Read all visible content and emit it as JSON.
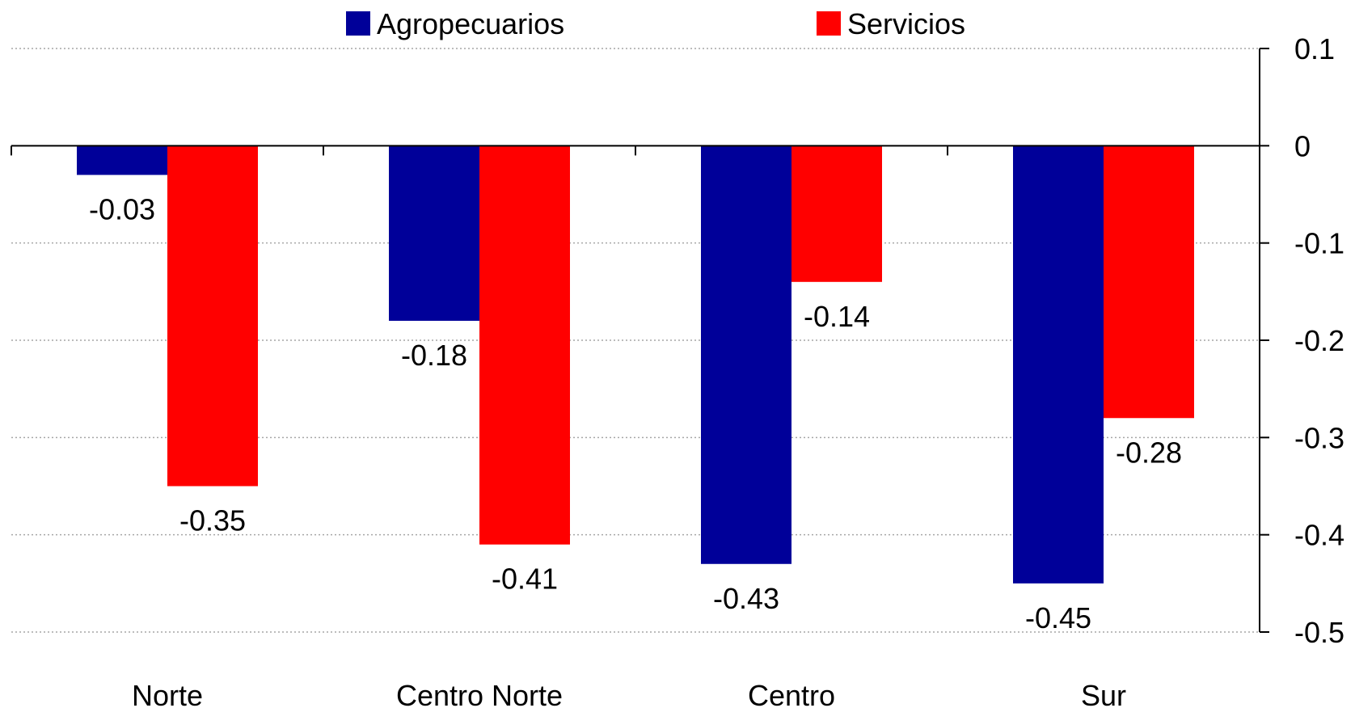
{
  "chart_data": {
    "type": "bar",
    "categories": [
      "Norte",
      "Centro Norte",
      "Centro",
      "Sur"
    ],
    "series": [
      {
        "name": "Agropecuarios",
        "color": "#000099",
        "values": [
          -0.03,
          -0.18,
          -0.43,
          -0.45
        ]
      },
      {
        "name": "Servicios",
        "color": "#ff0000",
        "values": [
          -0.35,
          -0.41,
          -0.14,
          -0.28
        ]
      }
    ],
    "data_labels": [
      [
        "-0.03",
        "-0.18",
        "-0.43",
        "-0.45"
      ],
      [
        "-0.35",
        "-0.41",
        "-0.14",
        "-0.28"
      ]
    ],
    "ylim": [
      -0.5,
      0.1
    ],
    "y_ticks": [
      0.1,
      0,
      -0.1,
      -0.2,
      -0.3,
      -0.4,
      -0.5
    ],
    "y_tick_labels": [
      "0.1",
      "0",
      "-0.1",
      "-0.2",
      "-0.3",
      "-0.4",
      "-0.5"
    ],
    "y_axis_side": "right",
    "grid": "horizontal-dotted",
    "legend_position": "top-center",
    "title": "",
    "xlabel": "",
    "ylabel": ""
  }
}
